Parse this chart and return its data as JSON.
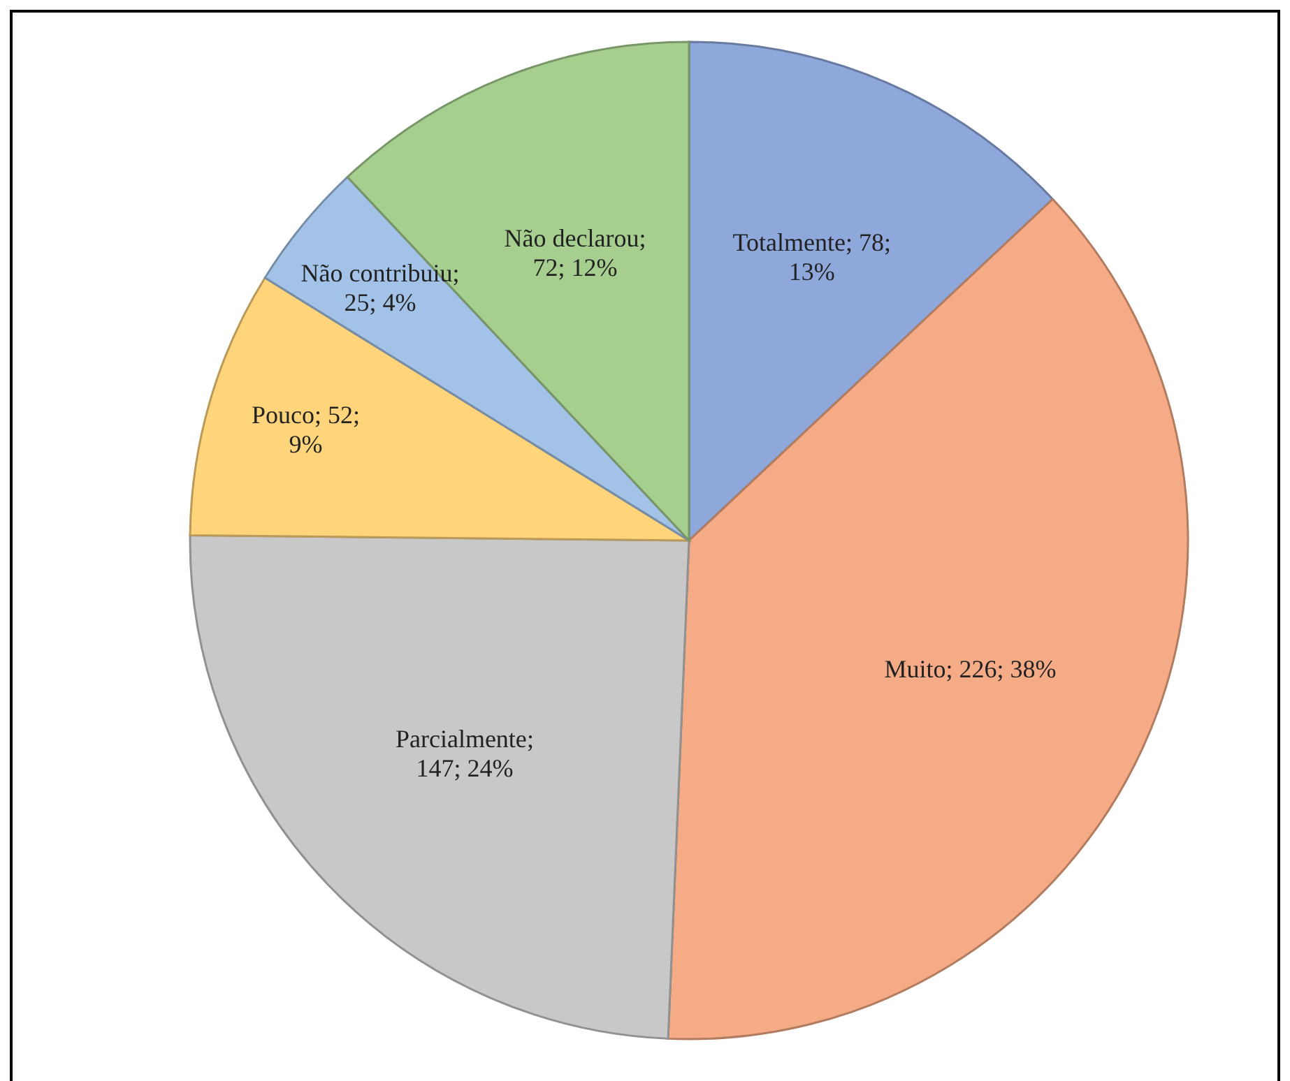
{
  "chart_data": {
    "type": "pie",
    "categories": [
      "Totalmente",
      "Muito",
      "Parcialmente",
      "Pouco",
      "Não contribuiu",
      "Não declarou"
    ],
    "values": [
      78,
      226,
      147,
      52,
      25,
      72
    ],
    "colors": [
      "#8fa8dc",
      "#f5ab86",
      "#c8c8c8",
      "#ffd47a",
      "#a3c2e8",
      "#a6cf8f"
    ],
    "value_labels": [
      "; 78; 13%",
      "; 226; 38%",
      "; 147; 24%",
      "; 52; 9%",
      "; 25; 4%",
      "; 72; 12%"
    ]
  }
}
